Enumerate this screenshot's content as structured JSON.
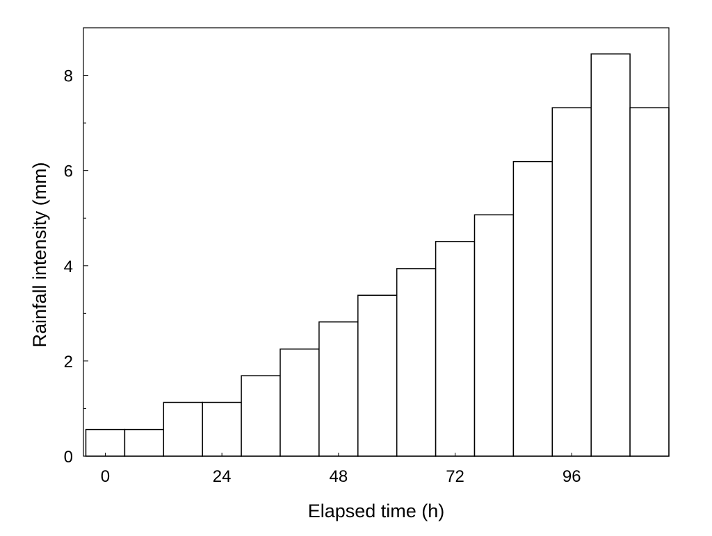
{
  "chart_data": {
    "type": "bar",
    "title": "",
    "xlabel": "Elapsed time (h)",
    "ylabel": "Rainfall intensity (mm)",
    "bar_width_h": 8,
    "x_start_h": -4,
    "xlim": [
      -4.5,
      116
    ],
    "ylim": [
      0,
      9
    ],
    "xticks": [
      0,
      24,
      48,
      72,
      96
    ],
    "yticks": [
      0,
      2,
      4,
      6,
      8
    ],
    "grid": false,
    "categories": [
      0,
      8,
      16,
      24,
      32,
      40,
      48,
      56,
      64,
      72,
      80,
      88,
      96,
      104,
      112
    ],
    "values": [
      0.56,
      0.56,
      1.13,
      1.13,
      1.69,
      2.25,
      2.82,
      3.38,
      3.94,
      4.51,
      5.07,
      6.19,
      7.32,
      8.45,
      7.32
    ]
  }
}
